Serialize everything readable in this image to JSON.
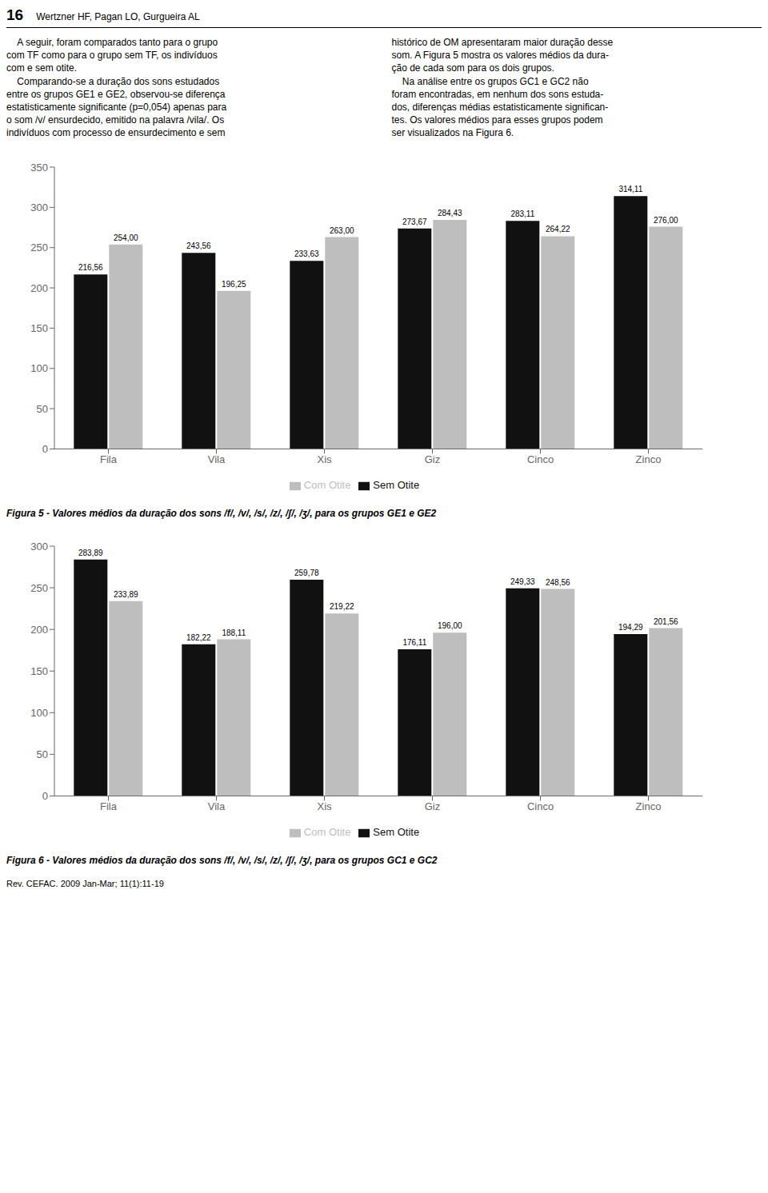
{
  "annotations": [
    "16",
    "Wertzner HF, Pagan LO, Gurgueira AL",
    "    A seguir, foram comparados tanto para o grupo\ncom TF como para o grupo sem TF, os indivíduos\ncom e sem otite.\n    Comparando-se a duração dos sons estudados\nentre os grupos GE1 e GE2, observou-se diferença\nestatisticamente significante (p=0,054) apenas para\no som /v/ ensurdecido, emitido na palavra /vila/. Os\nindivíduos com processo de ensurdecimento e sem",
    "histórico de OM apresentaram maior duração desse\nsom. A Figura 5 mostra os valores médios da dura-\nção de cada som para os dois grupos.\n    Na análise entre os grupos GC1 e GC2 não\nforam encontradas, em nenhum dos sons estuda-\ndos, diferenças médias estatisticamente significan-\ntes. Os valores médios para esses grupos podem\nser visualizados na Figura 6.",
    "Rev. CEFAC. 2009 Jan-Mar; 11(1):11-19"
  ],
  "chart_data": [
    {
      "type": "bar",
      "title": "Figura 5 - Valores médios da duração dos sons /f/, /v/, /s/, /z/, /ʃ/, /ʒ/, para os grupos GE1 e GE2",
      "categories": [
        "Fila",
        "Vila",
        "Xis",
        "Giz",
        "Cinco",
        "Zinco"
      ],
      "series": [
        {
          "name": "Sem Otite",
          "color": "#111111",
          "values": [
            216.56,
            243.56,
            233.63,
            273.67,
            283.11,
            314.11
          ],
          "value_labels": [
            "216,56",
            "243,56",
            "233,63",
            "273,67",
            "283,11",
            "314,11"
          ]
        },
        {
          "name": "Com Otite",
          "color": "#bebebe",
          "values": [
            254.0,
            196.25,
            263.0,
            284.43,
            264.22,
            276.0
          ],
          "value_labels": [
            "254,00",
            "196,25",
            "263,00",
            "284,43",
            "264,22",
            "276,00"
          ]
        }
      ],
      "ylim": [
        0,
        350
      ],
      "yticks": [
        0,
        50,
        100,
        150,
        200,
        250,
        300,
        350
      ],
      "data_labels": true,
      "grid": false,
      "legend": "bottom"
    },
    {
      "type": "bar",
      "title": "Figura 6 - Valores médios da duração dos sons /f/, /v/, /s/, /z/, /ʃ/, /ʒ/, para os grupos GC1 e GC2",
      "categories": [
        "Fila",
        "Vila",
        "Xis",
        "Giz",
        "Cinco",
        "Zinco"
      ],
      "series": [
        {
          "name": "Sem Otite",
          "color": "#111111",
          "values": [
            283.89,
            182.22,
            259.78,
            176.11,
            249.33,
            194.29
          ],
          "value_labels": [
            "283,89",
            "182,22",
            "259,78",
            "176,11",
            "249,33",
            "194,29"
          ]
        },
        {
          "name": "Com Otite",
          "color": "#bebebe",
          "values": [
            233.89,
            188.11,
            219.22,
            196.0,
            248.56,
            201.56
          ],
          "value_labels": [
            "233,89",
            "188,11",
            "219,22",
            "196,00",
            "248,56",
            "201,56"
          ]
        }
      ],
      "ylim": [
        0,
        300
      ],
      "yticks": [
        0,
        50,
        100,
        150,
        200,
        250,
        300
      ],
      "data_labels": true,
      "grid": false,
      "legend": "bottom"
    }
  ]
}
